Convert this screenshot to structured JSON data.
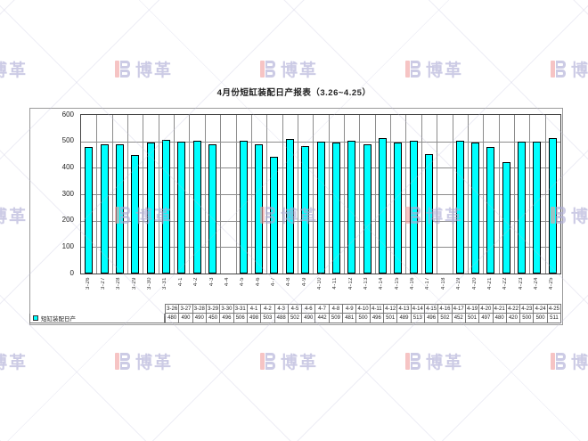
{
  "page": {
    "title": "4月份短缸装配日产报表（3.26~4.25）"
  },
  "watermark": {
    "text": "博革"
  },
  "chart_data": {
    "type": "bar",
    "title": "4月份短缸装配日产报表（3.26~4.25）",
    "series_name": "短缸装配日产",
    "categories": [
      "3-26",
      "3-27",
      "3-28",
      "3-29",
      "3-30",
      "3-31",
      "4-1",
      "4-2",
      "4-3",
      "4-4",
      "4-5",
      "4-6",
      "4-7",
      "4-8",
      "4-9",
      "4-10",
      "4-11",
      "4-12",
      "4-13",
      "4-14",
      "4-15",
      "4-16",
      "4-17",
      "4-18",
      "4-19",
      "4-20",
      "4-21",
      "4-22",
      "4-23",
      "4-24",
      "4-25"
    ],
    "values": [
      480,
      490,
      490,
      450,
      496,
      506,
      498,
      503,
      488,
      null,
      502,
      490,
      442,
      509,
      481,
      500,
      496,
      501,
      489,
      513,
      496,
      502,
      452,
      null,
      501,
      497,
      480,
      420,
      500,
      500,
      511
    ],
    "ylim": [
      0,
      600
    ],
    "yticks": [
      0,
      100,
      200,
      300,
      400,
      500,
      600
    ],
    "bar_color": "#00FFFF",
    "grid": true,
    "legend_position": "table-bottom"
  },
  "data_table": {
    "legend_label": "短缸装配日产",
    "dates": [
      "3-26",
      "3-27",
      "3-28",
      "3-29",
      "3-30",
      "3-31",
      "4-1",
      "4-2",
      "4-3",
      "4-5",
      "4-6",
      "4-7",
      "4-8",
      "4-9",
      "4-10",
      "4-11",
      "4-12",
      "4-13",
      "4-14",
      "4-15",
      "4-16",
      "4-17",
      "4-19",
      "4-20",
      "4-21",
      "4-22",
      "4-23",
      "4-24",
      "4-25"
    ],
    "values": [
      480,
      490,
      490,
      450,
      496,
      506,
      498,
      503,
      488,
      502,
      490,
      442,
      509,
      481,
      500,
      496,
      501,
      489,
      513,
      496,
      502,
      452,
      501,
      497,
      480,
      420,
      500,
      500,
      511
    ]
  }
}
